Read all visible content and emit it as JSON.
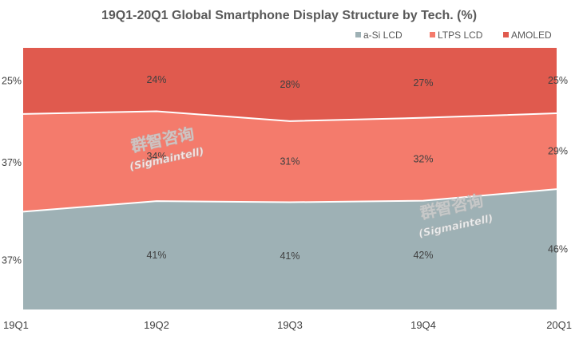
{
  "chart_data": {
    "type": "area",
    "stacked": true,
    "percent": true,
    "title": "19Q1-20Q1 Global Smartphone Display Structure by Tech. (%)",
    "categories": [
      "19Q1",
      "19Q2",
      "19Q3",
      "19Q4",
      "20Q1"
    ],
    "series": [
      {
        "name": "a-Si LCD",
        "values": [
          37,
          41,
          41,
          42,
          46
        ],
        "labels": [
          "37%",
          "41%",
          "41%",
          "42%",
          "46%"
        ],
        "color": "#9eb1b5"
      },
      {
        "name": "LTPS LCD",
        "values": [
          37,
          34,
          31,
          32,
          29
        ],
        "labels": [
          "37%",
          "34%",
          "31%",
          "32%",
          "29%"
        ],
        "color": "#f47b6c"
      },
      {
        "name": "AMOLED",
        "values": [
          25,
          24,
          28,
          27,
          25
        ],
        "labels": [
          "25%",
          "24%",
          "28%",
          "27%",
          "25%"
        ],
        "color": "#e05a4e"
      }
    ],
    "ylim": [
      0,
      100
    ],
    "legend_position": "top-right",
    "grid": false
  },
  "watermarks": [
    {
      "cn": "群智咨询",
      "en": "(Sigmaintell)"
    },
    {
      "cn": "群智咨询",
      "en": "(Sigmaintell)"
    }
  ]
}
